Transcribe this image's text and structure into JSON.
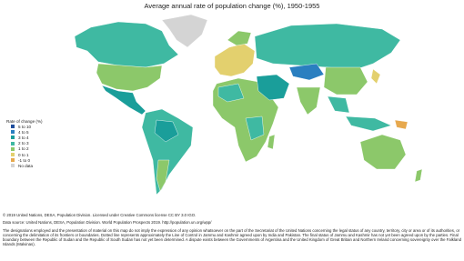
{
  "title": "Average annual rate of population change (%), 1950-1955",
  "legend": {
    "title": "Rate of change (%)",
    "items": [
      {
        "label": "5 to 10",
        "color": "#1f4e9c"
      },
      {
        "label": "4 to 5",
        "color": "#2a7fc0"
      },
      {
        "label": "3 to 4",
        "color": "#1a9e9a"
      },
      {
        "label": "2 to 3",
        "color": "#3fb9a2"
      },
      {
        "label": "1 to 2",
        "color": "#8cc86a"
      },
      {
        "label": "0 to 1",
        "color": "#e3d06e"
      },
      {
        "label": "-1 to 0",
        "color": "#e7a94e"
      },
      {
        "label": "No data",
        "color": "#d4d4d4"
      }
    ]
  },
  "footer": {
    "copyright": "© 2019 United Nations, DESA, Population Division. Licensed under Creative Commons license CC BY 3.0 IGO.",
    "source": "Data source: United Nations, DESA, Population Division. World Population Prospects 2019. http://population.un.org/wpp/",
    "disclaimer": "The designations employed and the presentation of material on this map do not imply the expression of any opinion whatsoever on the part of the Secretariat of the United Nations concerning the legal status of any country, territory, city or area or of its authorities, or concerning the delimitation of its frontiers or boundaries. Dotted line represents approximately the Line of Control in Jammu and Kashmir agreed upon by India and Pakistan. The final status of Jammu and Kashmir has not yet been agreed upon by the parties. Final boundary between the Republic of Sudan and the Republic of South Sudan has not yet been determined. A dispute exists between the Governments of Argentina and the United Kingdom of Great Britain and Northern Ireland concerning sovereignty over the Falkland Islands (Malvinas)."
  }
}
